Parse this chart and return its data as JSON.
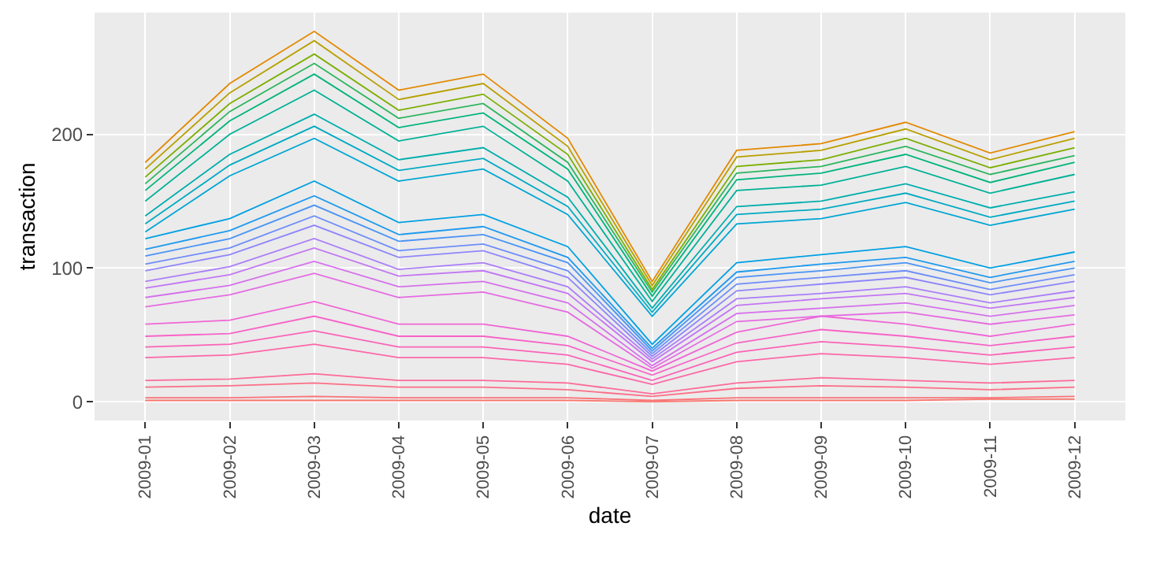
{
  "chart_data": {
    "type": "line",
    "xlabel": "date",
    "ylabel": "transaction",
    "categories": [
      "2009-01",
      "2009-02",
      "2009-03",
      "2009-04",
      "2009-05",
      "2009-06",
      "2009-07",
      "2009-08",
      "2009-09",
      "2009-10",
      "2009-11",
      "2009-12"
    ],
    "ylim": [
      -14,
      291
    ],
    "yticks": [
      0,
      100,
      200
    ],
    "grid": true,
    "series": [
      {
        "color": "#F8766D",
        "values": [
          1,
          1,
          1,
          1,
          1,
          1,
          0,
          1,
          1,
          1,
          2,
          2
        ]
      },
      {
        "color": "#FA7379",
        "values": [
          3,
          3,
          4,
          3,
          3,
          3,
          1,
          3,
          3,
          3,
          3,
          4
        ]
      },
      {
        "color": "#FB6F88",
        "values": [
          11,
          12,
          14,
          11,
          11,
          9,
          4,
          10,
          12,
          11,
          9,
          11
        ]
      },
      {
        "color": "#FC6B98",
        "values": [
          16,
          17,
          21,
          16,
          16,
          14,
          6,
          14,
          18,
          16,
          14,
          16
        ]
      },
      {
        "color": "#FD67A8",
        "values": [
          33,
          35,
          43,
          33,
          33,
          28,
          13,
          30,
          36,
          33,
          28,
          33
        ]
      },
      {
        "color": "#FB63B8",
        "values": [
          41,
          43,
          53,
          41,
          41,
          35,
          16,
          37,
          45,
          41,
          35,
          41
        ]
      },
      {
        "color": "#F763C7",
        "values": [
          49,
          51,
          64,
          49,
          49,
          42,
          20,
          44,
          54,
          49,
          42,
          49
        ]
      },
      {
        "color": "#F066D6",
        "values": [
          58,
          61,
          75,
          58,
          58,
          49,
          23,
          52,
          64,
          58,
          49,
          58
        ]
      },
      {
        "color": "#E56BE2",
        "values": [
          71,
          80,
          96,
          78,
          82,
          67,
          25,
          60,
          64,
          67,
          58,
          65
        ]
      },
      {
        "color": "#D570EC",
        "values": [
          78,
          87,
          105,
          86,
          90,
          74,
          27,
          66,
          70,
          74,
          64,
          72
        ]
      },
      {
        "color": "#C277F3",
        "values": [
          85,
          95,
          115,
          94,
          98,
          81,
          30,
          72,
          77,
          81,
          70,
          78
        ]
      },
      {
        "color": "#AB7EF8",
        "values": [
          90,
          101,
          122,
          99,
          104,
          86,
          32,
          77,
          81,
          86,
          74,
          83
        ]
      },
      {
        "color": "#8F86FA",
        "values": [
          98,
          110,
          132,
          108,
          113,
          93,
          34,
          83,
          88,
          93,
          80,
          90
        ]
      },
      {
        "color": "#6E8DF9",
        "values": [
          103,
          115,
          139,
          113,
          118,
          98,
          36,
          88,
          93,
          98,
          84,
          95
        ]
      },
      {
        "color": "#4A94F5",
        "values": [
          109,
          122,
          147,
          120,
          125,
          104,
          38,
          93,
          98,
          104,
          89,
          100
        ]
      },
      {
        "color": "#1F9AEE",
        "values": [
          114,
          128,
          154,
          125,
          131,
          108,
          40,
          97,
          103,
          108,
          93,
          105
        ]
      },
      {
        "color": "#00A0E3",
        "values": [
          122,
          137,
          165,
          134,
          140,
          116,
          43,
          104,
          110,
          116,
          100,
          112
        ]
      },
      {
        "color": "#00A6D4",
        "values": [
          127,
          169,
          197,
          165,
          174,
          140,
          64,
          133,
          137,
          149,
          132,
          144
        ]
      },
      {
        "color": "#00AAC2",
        "values": [
          133,
          177,
          206,
          173,
          182,
          146,
          67,
          140,
          144,
          156,
          138,
          150
        ]
      },
      {
        "color": "#00AEAD",
        "values": [
          139,
          185,
          215,
          181,
          190,
          153,
          70,
          146,
          150,
          163,
          145,
          157
        ]
      },
      {
        "color": "#00B196",
        "values": [
          150,
          200,
          233,
          195,
          206,
          165,
          75,
          158,
          162,
          176,
          156,
          170
        ]
      },
      {
        "color": "#00B47C",
        "values": [
          158,
          210,
          245,
          205,
          216,
          174,
          79,
          166,
          171,
          185,
          164,
          179
        ]
      },
      {
        "color": "#2CB55E",
        "values": [
          163,
          217,
          253,
          212,
          223,
          179,
          82,
          171,
          176,
          191,
          170,
          184
        ]
      },
      {
        "color": "#7CAE00",
        "values": [
          168,
          223,
          260,
          218,
          230,
          185,
          84,
          176,
          181,
          197,
          175,
          190
        ]
      },
      {
        "color": "#B8A000",
        "values": [
          174,
          231,
          270,
          226,
          238,
          191,
          87,
          183,
          188,
          204,
          181,
          197
        ]
      },
      {
        "color": "#E38900",
        "values": [
          179,
          238,
          277,
          233,
          245,
          197,
          90,
          188,
          193,
          209,
          186,
          202
        ]
      }
    ]
  }
}
